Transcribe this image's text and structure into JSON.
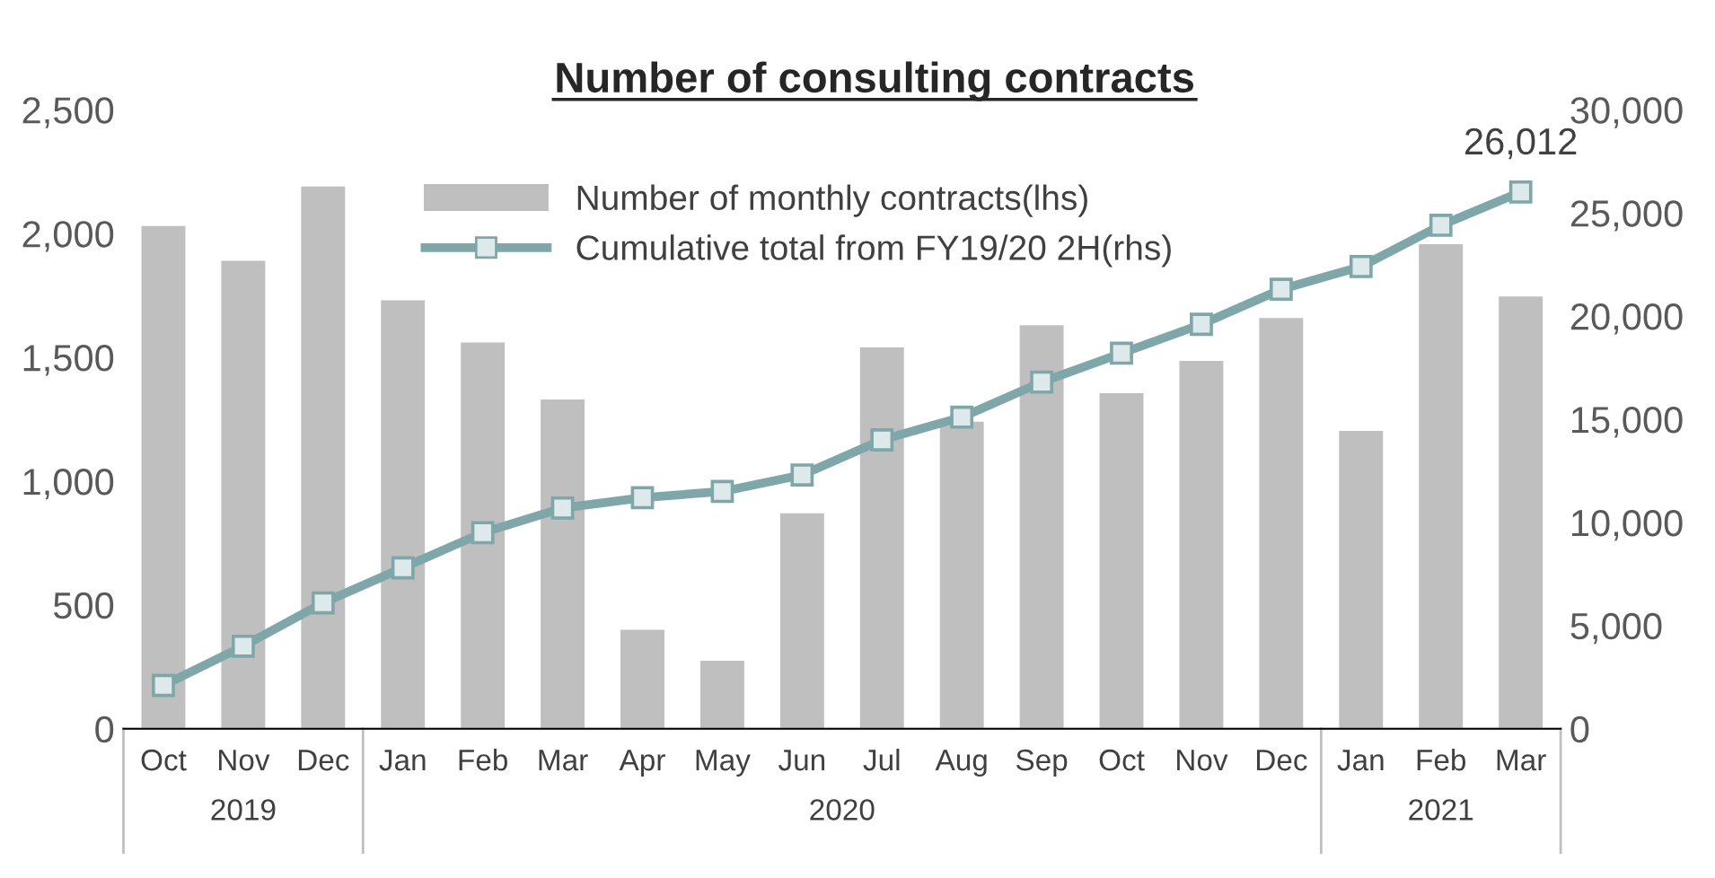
{
  "chart_data": {
    "type": "bar",
    "title": "Number of consulting contracts",
    "categories": [
      "Oct",
      "Nov",
      "Dec",
      "Jan",
      "Feb",
      "Mar",
      "Apr",
      "May",
      "Jun",
      "Jul",
      "Aug",
      "Sep",
      "Oct",
      "Nov",
      "Dec",
      "Jan",
      "Feb",
      "Mar"
    ],
    "series": [
      {
        "name": "Number of monthly contracts(lhs)",
        "color": "#bfbfbf",
        "values": [
          2030,
          1890,
          2190,
          1730,
          1560,
          1330,
          400,
          275,
          870,
          1540,
          1240,
          1630,
          1355,
          1486,
          1659,
          1203,
          1957,
          1746
        ]
      },
      {
        "name": "Cumulative total from FY19/20 2H(rhs)",
        "type": "line",
        "axis": "y2",
        "color": "#7fa7a9",
        "marker": "square",
        "values": [
          2100,
          4000,
          6100,
          7800,
          9500,
          10700,
          11200,
          11500,
          12300,
          14000,
          15100,
          16800,
          18200,
          19600,
          21300,
          22400,
          24400,
          26012
        ],
        "value_labels": [
          null,
          null,
          null,
          null,
          null,
          null,
          null,
          null,
          null,
          null,
          null,
          null,
          null,
          null,
          null,
          null,
          null,
          "26,012"
        ]
      }
    ],
    "ylim": [
      0,
      2500
    ],
    "yticks": [
      {
        "value": 0,
        "label": "0"
      },
      {
        "value": 500,
        "label": "500"
      },
      {
        "value": 1000,
        "label": "1,000"
      },
      {
        "value": 1500,
        "label": "1,500"
      },
      {
        "value": 2000,
        "label": "2,000"
      },
      {
        "value": 2500,
        "label": "2,500"
      }
    ],
    "y2lim": [
      0,
      30000
    ],
    "y2ticks": [
      {
        "value": 0,
        "label": "0"
      },
      {
        "value": 5000,
        "label": "5,000"
      },
      {
        "value": 10000,
        "label": "10,000"
      },
      {
        "value": 15000,
        "label": "15,000"
      },
      {
        "value": 20000,
        "label": "20,000"
      },
      {
        "value": 25000,
        "label": "25,000"
      },
      {
        "value": 30000,
        "label": "30,000"
      }
    ],
    "annotations": [
      "2019",
      "2020",
      "2021"
    ],
    "legend": "top",
    "grid": false
  }
}
